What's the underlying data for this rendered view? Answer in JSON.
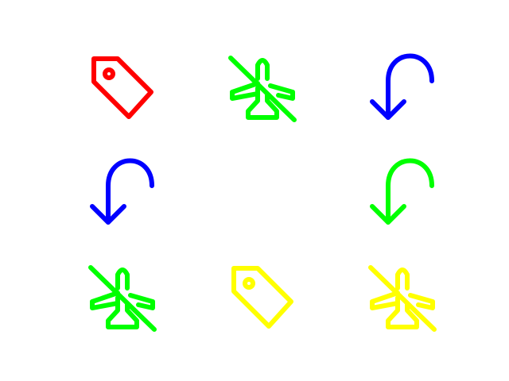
{
  "grid": {
    "rows": 3,
    "cols": 3,
    "cells": [
      {
        "icon": "tag-icon",
        "color": "#ff0000"
      },
      {
        "icon": "airplane-off-icon",
        "color": "#00ff00"
      },
      {
        "icon": "undo-arrow-icon",
        "color": "#0000ff"
      },
      {
        "icon": "undo-arrow-icon",
        "color": "#0000ff"
      },
      {
        "icon": "empty",
        "color": "#ffffff"
      },
      {
        "icon": "undo-arrow-icon",
        "color": "#00ff00"
      },
      {
        "icon": "airplane-off-icon",
        "color": "#00ff00"
      },
      {
        "icon": "tag-icon",
        "color": "#ffff00"
      },
      {
        "icon": "airplane-off-icon",
        "color": "#ffff00"
      }
    ]
  }
}
